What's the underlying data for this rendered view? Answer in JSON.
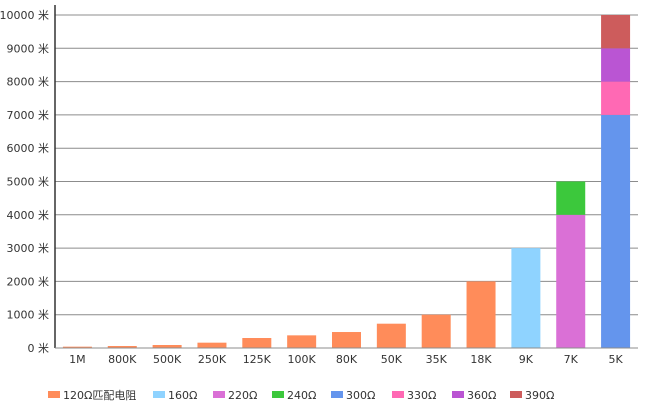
{
  "chart_data": {
    "type": "bar",
    "stacked": true,
    "categories": [
      "1M",
      "800K",
      "500K",
      "250K",
      "125K",
      "100K",
      "80K",
      "50K",
      "35K",
      "18K",
      "9K",
      "7K",
      "5K"
    ],
    "series": [
      {
        "name": "120Ω匹配电阻",
        "color": "#ff8c5a",
        "values": [
          40,
          60,
          90,
          160,
          300,
          380,
          480,
          730,
          1000,
          2000,
          0,
          0,
          0
        ]
      },
      {
        "name": "160Ω",
        "color": "#8fd3ff",
        "values": [
          0,
          0,
          0,
          0,
          0,
          0,
          0,
          0,
          0,
          0,
          3000,
          0,
          0
        ]
      },
      {
        "name": "220Ω",
        "color": "#da70d6",
        "values": [
          0,
          0,
          0,
          0,
          0,
          0,
          0,
          0,
          0,
          0,
          0,
          4000,
          0
        ]
      },
      {
        "name": "240Ω",
        "color": "#3cc83c",
        "values": [
          0,
          0,
          0,
          0,
          0,
          0,
          0,
          0,
          0,
          0,
          0,
          1000,
          0
        ]
      },
      {
        "name": "300Ω",
        "color": "#6495ed",
        "values": [
          0,
          0,
          0,
          0,
          0,
          0,
          0,
          0,
          0,
          0,
          0,
          0,
          7000
        ]
      },
      {
        "name": "330Ω",
        "color": "#ff69b4",
        "values": [
          0,
          0,
          0,
          0,
          0,
          0,
          0,
          0,
          0,
          0,
          0,
          0,
          1000
        ]
      },
      {
        "name": "360Ω",
        "color": "#ba55d3",
        "values": [
          0,
          0,
          0,
          0,
          0,
          0,
          0,
          0,
          0,
          0,
          0,
          0,
          1000
        ]
      },
      {
        "name": "390Ω",
        "color": "#cd5c5c",
        "values": [
          0,
          0,
          0,
          0,
          0,
          0,
          0,
          0,
          0,
          0,
          0,
          0,
          1000
        ]
      }
    ],
    "y_ticks": [
      "0 米",
      "1000 米",
      "2000 米",
      "3000 米",
      "4000 米",
      "5000 米",
      "6000 米",
      "7000 米",
      "8000 米",
      "9000 米",
      "10000 米"
    ],
    "ylim": [
      0,
      10000
    ],
    "grid": true,
    "legend_position": "bottom"
  }
}
